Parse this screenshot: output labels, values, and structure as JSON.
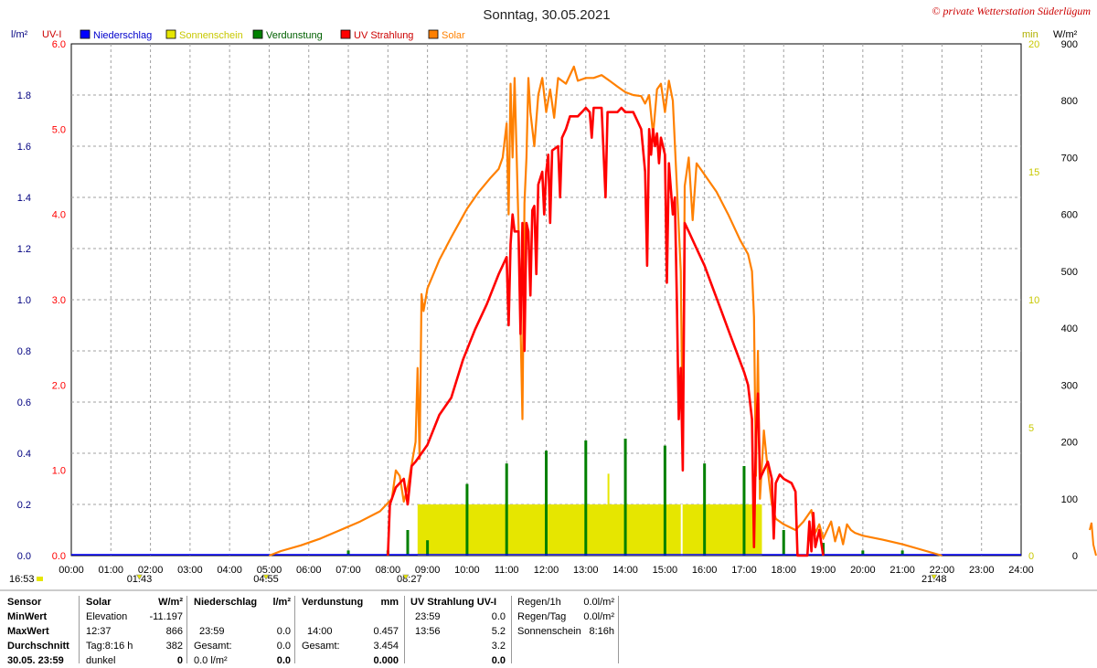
{
  "header": {
    "title": "Sonntag, 30.05.2021",
    "copyright": "© private Wetterstation Süderlügum",
    "left_unit_1": "l/m²",
    "left_unit_2": "UV-I",
    "right_unit_1": "min",
    "right_unit_2": "W/m²"
  },
  "legend": [
    {
      "label": "Niederschlag",
      "color": "#0000ff"
    },
    {
      "label": "Sonnenschein",
      "color": "#e6e600"
    },
    {
      "label": "Verdunstung",
      "color": "#008000"
    },
    {
      "label": "UV Strahlung",
      "color": "#ff0000"
    },
    {
      "label": "Solar",
      "color": "#ff8000"
    }
  ],
  "chart_data": {
    "type": "line",
    "title": "Sonntag, 30.05.2021",
    "x_range_hours": [
      0,
      24
    ],
    "x_ticks": [
      "00:00",
      "01:00",
      "02:00",
      "03:00",
      "04:00",
      "05:00",
      "06:00",
      "07:00",
      "08:00",
      "09:00",
      "10:00",
      "11:00",
      "12:00",
      "13:00",
      "14:00",
      "15:00",
      "16:00",
      "17:00",
      "18:00",
      "19:00",
      "20:00",
      "21:00",
      "22:00",
      "23:00",
      "24:00"
    ],
    "axes": {
      "rain": {
        "unit": "l/m²",
        "range": [
          0,
          2.0
        ],
        "ticks": [
          "0.0",
          "0.2",
          "0.4",
          "0.6",
          "0.8",
          "1.0",
          "1.2",
          "1.4",
          "1.6",
          "1.8"
        ],
        "color": "#000080"
      },
      "uv": {
        "unit": "UV-I",
        "range": [
          0,
          6.0
        ],
        "ticks": [
          "0.0",
          "1.0",
          "2.0",
          "3.0",
          "4.0",
          "5.0",
          "6.0"
        ],
        "color": "#ff0000"
      },
      "sun_min": {
        "unit": "min",
        "range": [
          0,
          20
        ],
        "ticks": [
          "0",
          "5",
          "10",
          "15",
          "20"
        ],
        "color": "#c8c800"
      },
      "solar": {
        "unit": "W/m²",
        "range": [
          0,
          900
        ],
        "ticks": [
          "0",
          "100",
          "200",
          "300",
          "400",
          "500",
          "600",
          "700",
          "800",
          "900"
        ],
        "color": "#000000"
      }
    },
    "markers": [
      {
        "label": "16:53",
        "hour": -0.5
      },
      {
        "label": "01:43",
        "hour": 1.72
      },
      {
        "label": "04:55",
        "hour": 4.92
      },
      {
        "label": "08:27",
        "hour": 8.45
      },
      {
        "label": "21:48",
        "hour": 21.8
      }
    ],
    "series": [
      {
        "name": "Solar",
        "color": "#ff8000",
        "axis": "solar",
        "points": [
          [
            5.0,
            0
          ],
          [
            5.3,
            8
          ],
          [
            5.8,
            18
          ],
          [
            6.3,
            30
          ],
          [
            6.8,
            45
          ],
          [
            7.3,
            60
          ],
          [
            7.8,
            78
          ],
          [
            8.1,
            100
          ],
          [
            8.2,
            150
          ],
          [
            8.3,
            140
          ],
          [
            8.4,
            95
          ],
          [
            8.5,
            120
          ],
          [
            8.6,
            160
          ],
          [
            8.7,
            200
          ],
          [
            8.75,
            330
          ],
          [
            8.8,
            170
          ],
          [
            8.85,
            460
          ],
          [
            8.9,
            430
          ],
          [
            9.0,
            470
          ],
          [
            9.3,
            520
          ],
          [
            9.6,
            560
          ],
          [
            10.0,
            610
          ],
          [
            10.3,
            640
          ],
          [
            10.6,
            665
          ],
          [
            10.8,
            680
          ],
          [
            10.9,
            700
          ],
          [
            11.0,
            760
          ],
          [
            11.05,
            600
          ],
          [
            11.1,
            830
          ],
          [
            11.15,
            700
          ],
          [
            11.2,
            840
          ],
          [
            11.3,
            580
          ],
          [
            11.4,
            240
          ],
          [
            11.45,
            620
          ],
          [
            11.5,
            700
          ],
          [
            11.55,
            840
          ],
          [
            11.6,
            780
          ],
          [
            11.7,
            720
          ],
          [
            11.8,
            810
          ],
          [
            11.9,
            840
          ],
          [
            12.0,
            780
          ],
          [
            12.1,
            820
          ],
          [
            12.2,
            770
          ],
          [
            12.3,
            840
          ],
          [
            12.5,
            830
          ],
          [
            12.7,
            860
          ],
          [
            12.8,
            835
          ],
          [
            13.0,
            840
          ],
          [
            13.2,
            840
          ],
          [
            13.4,
            845
          ],
          [
            13.6,
            835
          ],
          [
            13.8,
            825
          ],
          [
            14.0,
            815
          ],
          [
            14.2,
            810
          ],
          [
            14.4,
            808
          ],
          [
            14.5,
            795
          ],
          [
            14.6,
            810
          ],
          [
            14.7,
            740
          ],
          [
            14.8,
            820
          ],
          [
            14.9,
            830
          ],
          [
            15.0,
            780
          ],
          [
            15.1,
            835
          ],
          [
            15.2,
            800
          ],
          [
            15.3,
            650
          ],
          [
            15.4,
            500
          ],
          [
            15.45,
            180
          ],
          [
            15.5,
            650
          ],
          [
            15.6,
            700
          ],
          [
            15.7,
            590
          ],
          [
            15.8,
            690
          ],
          [
            16.0,
            670
          ],
          [
            16.3,
            640
          ],
          [
            16.6,
            600
          ],
          [
            16.9,
            555
          ],
          [
            17.1,
            530
          ],
          [
            17.2,
            500
          ],
          [
            17.25,
            420
          ],
          [
            17.3,
            140
          ],
          [
            17.35,
            360
          ],
          [
            17.4,
            100
          ],
          [
            17.5,
            220
          ],
          [
            17.6,
            150
          ],
          [
            17.7,
            90
          ],
          [
            17.8,
            65
          ],
          [
            18.0,
            55
          ],
          [
            18.3,
            45
          ],
          [
            18.5,
            60
          ],
          [
            18.7,
            80
          ],
          [
            18.8,
            40
          ],
          [
            18.9,
            55
          ],
          [
            19.0,
            30
          ],
          [
            19.2,
            60
          ],
          [
            19.3,
            25
          ],
          [
            19.4,
            50
          ],
          [
            19.5,
            20
          ],
          [
            19.6,
            55
          ],
          [
            19.7,
            45
          ],
          [
            19.8,
            40
          ],
          [
            20.0,
            35
          ],
          [
            20.5,
            28
          ],
          [
            21.0,
            20
          ],
          [
            21.4,
            12
          ],
          [
            21.8,
            4
          ],
          [
            22.0,
            0
          ]
        ]
      },
      {
        "name": "UV Strahlung",
        "color": "#ff0000",
        "axis": "uv",
        "points": [
          [
            8.0,
            0
          ],
          [
            8.05,
            0.6
          ],
          [
            8.2,
            0.8
          ],
          [
            8.4,
            0.9
          ],
          [
            8.5,
            0.6
          ],
          [
            8.6,
            1.05
          ],
          [
            8.7,
            1.1
          ],
          [
            9.0,
            1.3
          ],
          [
            9.3,
            1.65
          ],
          [
            9.6,
            1.85
          ],
          [
            9.9,
            2.3
          ],
          [
            10.2,
            2.65
          ],
          [
            10.5,
            2.95
          ],
          [
            10.8,
            3.3
          ],
          [
            11.0,
            3.5
          ],
          [
            11.05,
            2.7
          ],
          [
            11.1,
            3.65
          ],
          [
            11.15,
            4.0
          ],
          [
            11.2,
            3.8
          ],
          [
            11.3,
            3.8
          ],
          [
            11.35,
            2.6
          ],
          [
            11.4,
            3.9
          ],
          [
            11.45,
            2.4
          ],
          [
            11.5,
            3.9
          ],
          [
            11.55,
            3.8
          ],
          [
            11.6,
            3.05
          ],
          [
            11.65,
            4.05
          ],
          [
            11.7,
            4.1
          ],
          [
            11.75,
            3.3
          ],
          [
            11.8,
            4.35
          ],
          [
            11.9,
            4.5
          ],
          [
            11.95,
            4.0
          ],
          [
            12.0,
            4.5
          ],
          [
            12.05,
            4.7
          ],
          [
            12.1,
            3.9
          ],
          [
            12.15,
            4.75
          ],
          [
            12.3,
            4.8
          ],
          [
            12.35,
            4.2
          ],
          [
            12.4,
            4.9
          ],
          [
            12.5,
            5.0
          ],
          [
            12.6,
            5.15
          ],
          [
            12.8,
            5.15
          ],
          [
            12.9,
            5.2
          ],
          [
            13.0,
            5.25
          ],
          [
            13.1,
            5.2
          ],
          [
            13.15,
            4.9
          ],
          [
            13.2,
            5.25
          ],
          [
            13.4,
            5.25
          ],
          [
            13.5,
            4.2
          ],
          [
            13.55,
            5.2
          ],
          [
            13.8,
            5.2
          ],
          [
            13.9,
            5.25
          ],
          [
            14.0,
            5.2
          ],
          [
            14.2,
            5.2
          ],
          [
            14.3,
            5.1
          ],
          [
            14.4,
            5.0
          ],
          [
            14.5,
            4.5
          ],
          [
            14.55,
            3.4
          ],
          [
            14.6,
            5.0
          ],
          [
            14.65,
            4.7
          ],
          [
            14.7,
            5.0
          ],
          [
            14.75,
            4.8
          ],
          [
            14.8,
            4.95
          ],
          [
            14.85,
            4.6
          ],
          [
            14.9,
            4.9
          ],
          [
            15.0,
            4.7
          ],
          [
            15.05,
            3.2
          ],
          [
            15.1,
            4.6
          ],
          [
            15.2,
            4.0
          ],
          [
            15.25,
            4.2
          ],
          [
            15.3,
            3.0
          ],
          [
            15.35,
            1.6
          ],
          [
            15.4,
            2.2
          ],
          [
            15.45,
            1.0
          ],
          [
            15.5,
            3.9
          ],
          [
            15.6,
            3.8
          ],
          [
            15.8,
            3.6
          ],
          [
            16.0,
            3.4
          ],
          [
            16.2,
            3.15
          ],
          [
            16.4,
            2.9
          ],
          [
            16.6,
            2.65
          ],
          [
            16.8,
            2.4
          ],
          [
            17.0,
            2.15
          ],
          [
            17.1,
            2.0
          ],
          [
            17.2,
            1.6
          ],
          [
            17.25,
            0.1
          ],
          [
            17.3,
            1.4
          ],
          [
            17.35,
            1.9
          ],
          [
            17.4,
            0.9
          ],
          [
            17.5,
            1.0
          ],
          [
            17.6,
            1.1
          ],
          [
            17.7,
            0.9
          ],
          [
            17.75,
            0.2
          ],
          [
            17.8,
            0.85
          ],
          [
            17.9,
            0.95
          ],
          [
            18.0,
            0.9
          ],
          [
            18.2,
            0.85
          ],
          [
            18.3,
            0.75
          ],
          [
            18.35,
            0.0
          ],
          [
            18.6,
            0.0
          ],
          [
            18.65,
            0.4
          ],
          [
            18.7,
            0.05
          ],
          [
            18.75,
            0.5
          ],
          [
            18.8,
            0.1
          ],
          [
            18.9,
            0.3
          ],
          [
            19.0,
            0.0
          ]
        ]
      }
    ],
    "bars": {
      "verdunstung": {
        "name": "Verdunstung",
        "color": "#008000",
        "axis": "rain",
        "values": [
          [
            7.0,
            0.02
          ],
          [
            8.0,
            0.02
          ],
          [
            8.5,
            0.1
          ],
          [
            9.0,
            0.06
          ],
          [
            10.0,
            0.28
          ],
          [
            11.0,
            0.36
          ],
          [
            12.0,
            0.41
          ],
          [
            13.0,
            0.45
          ],
          [
            14.0,
            0.457
          ],
          [
            15.0,
            0.43
          ],
          [
            16.0,
            0.36
          ],
          [
            17.0,
            0.35
          ],
          [
            18.0,
            0.1
          ],
          [
            19.0,
            0.05
          ],
          [
            20.0,
            0.02
          ],
          [
            21.0,
            0.02
          ]
        ]
      },
      "sonnenschein": {
        "name": "Sonnenschein",
        "color": "#e6e600",
        "axis": "sun_min",
        "blocks": [
          [
            8.75,
            17.45,
            2.0
          ]
        ],
        "spike": [
          13.55,
          3.2
        ]
      }
    },
    "grid": true
  },
  "table": {
    "headers": [
      "Sensor",
      "Solar",
      "W/m²",
      "Niederschlag",
      "l/m²",
      "Verdunstung",
      "mm",
      "UV Strahlung UV-I"
    ],
    "rows": [
      {
        "label": "MinWert",
        "solar_a": "Elevation",
        "solar_b": "-11.197",
        "rain_a": "",
        "rain_b": "",
        "evap_a": "",
        "evap_b": "",
        "uv_a": "23:59",
        "uv_b": "0.0"
      },
      {
        "label": "MaxWert",
        "solar_a": "12:37",
        "solar_b": "866",
        "rain_a": "23:59",
        "rain_b": "0.0",
        "evap_a": "14:00",
        "evap_b": "0.457",
        "uv_a": "13:56",
        "uv_b": "5.2"
      },
      {
        "label": "Durchschnitt",
        "solar_a": "Tag:8:16 h",
        "solar_b": "382",
        "rain_a": "Gesamt:",
        "rain_b": "0.0",
        "evap_a": "Gesamt:",
        "evap_b": "3.454",
        "uv_a": "",
        "uv_b": "3.2"
      },
      {
        "label": "30.05. 23:59",
        "solar_a": "dunkel",
        "solar_b": "0",
        "rain_a": "0.0 l/m²",
        "rain_b": "0.0",
        "evap_a": "",
        "evap_b": "0.000",
        "uv_a": "",
        "uv_b": "0.0"
      }
    ],
    "extra": [
      {
        "label": "Regen/1h",
        "value": "0.0l/m²"
      },
      {
        "label": "Regen/Tag",
        "value": "0.0l/m²"
      },
      {
        "label": "Sonnenschein",
        "value": "8:16h"
      }
    ]
  }
}
